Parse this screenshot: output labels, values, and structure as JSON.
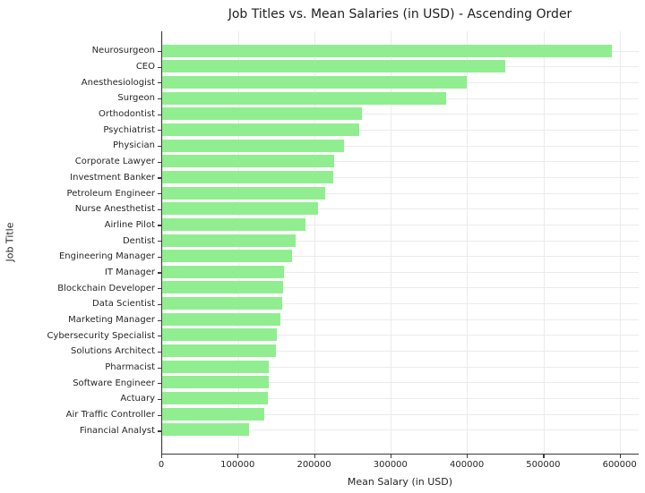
{
  "chart_data": {
    "type": "bar",
    "orientation": "horizontal",
    "title": "Job Titles vs. Mean Salaries (in USD) - Ascending Order",
    "xlabel": "Mean Salary (in USD)",
    "ylabel": "Job Title",
    "sort_note": "sorted descending top to bottom (ascending bottom to top)",
    "categories": [
      "Neurosurgeon",
      "CEO",
      "Anesthesiologist",
      "Surgeon",
      "Orthodontist",
      "Psychiatrist",
      "Physician",
      "Corporate Lawyer",
      "Investment Banker",
      "Petroleum Engineer",
      "Nurse Anesthetist",
      "Airline Pilot",
      "Dentist",
      "Engineering Manager",
      "IT Manager",
      "Blockchain Developer",
      "Data Scientist",
      "Marketing Manager",
      "Cybersecurity Specialist",
      "Solutions Architect",
      "Pharmacist",
      "Software Engineer",
      "Actuary",
      "Air Traffic Controller",
      "Financial Analyst"
    ],
    "values": [
      590000,
      450000,
      400000,
      372000,
      262000,
      258000,
      238000,
      226000,
      224000,
      214000,
      205000,
      188000,
      175000,
      170000,
      160000,
      159000,
      158000,
      155000,
      150000,
      149000,
      140000,
      140000,
      139000,
      134000,
      114000
    ],
    "xlim": [
      0,
      625000
    ],
    "xticks": [
      0,
      100000,
      200000,
      300000,
      400000,
      500000,
      600000
    ],
    "xtick_labels": [
      "0",
      "100000",
      "200000",
      "300000",
      "400000",
      "500000",
      "600000"
    ],
    "grid": true,
    "legend": "none",
    "bar_color": "#90EE90",
    "background_color": "#FFFFFF",
    "spine_color": "#3A3A3A",
    "grid_color": "#EBEBEB"
  }
}
